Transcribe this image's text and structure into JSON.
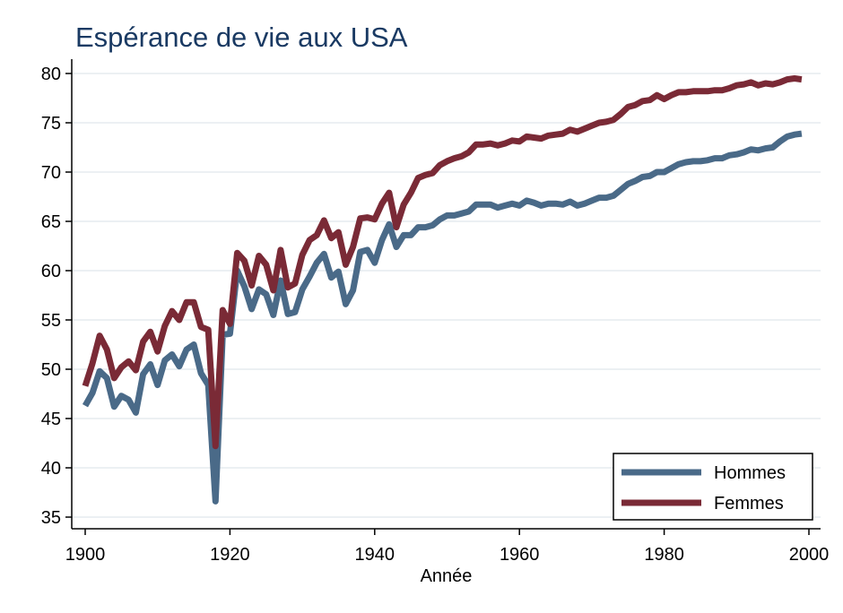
{
  "chart_data": {
    "type": "line",
    "title": "Espérance de vie aux USA",
    "xlabel": "Année",
    "ylabel": "",
    "xlim": [
      1900,
      2000
    ],
    "ylim": [
      35,
      80
    ],
    "xticks": [
      "1900",
      "1920",
      "1940",
      "1960",
      "1980",
      "2000"
    ],
    "yticks": [
      "35",
      "40",
      "45",
      "50",
      "55",
      "60",
      "65",
      "70",
      "75",
      "80"
    ],
    "grid": true,
    "legend_position": "bottom-right",
    "x": [
      1900,
      1901,
      1902,
      1903,
      1904,
      1905,
      1906,
      1907,
      1908,
      1909,
      1910,
      1911,
      1912,
      1913,
      1914,
      1915,
      1916,
      1917,
      1918,
      1919,
      1920,
      1921,
      1922,
      1923,
      1924,
      1925,
      1926,
      1927,
      1928,
      1929,
      1930,
      1931,
      1932,
      1933,
      1934,
      1935,
      1936,
      1937,
      1938,
      1939,
      1940,
      1941,
      1942,
      1943,
      1944,
      1945,
      1946,
      1947,
      1948,
      1949,
      1950,
      1951,
      1952,
      1953,
      1954,
      1955,
      1956,
      1957,
      1958,
      1959,
      1960,
      1961,
      1962,
      1963,
      1964,
      1965,
      1966,
      1967,
      1968,
      1969,
      1970,
      1971,
      1972,
      1973,
      1974,
      1975,
      1976,
      1977,
      1978,
      1979,
      1980,
      1981,
      1982,
      1983,
      1984,
      1985,
      1986,
      1987,
      1988,
      1989,
      1990,
      1991,
      1992,
      1993,
      1994,
      1995,
      1996,
      1997,
      1998,
      1999
    ],
    "series": [
      {
        "name": "Hommes",
        "color": "#4a6a88",
        "values": [
          46.3,
          47.6,
          49.8,
          49.1,
          46.2,
          47.3,
          46.9,
          45.6,
          49.5,
          50.5,
          48.4,
          50.9,
          51.5,
          50.3,
          52.0,
          52.5,
          49.6,
          48.4,
          36.6,
          53.5,
          53.6,
          60.0,
          58.4,
          56.1,
          58.1,
          57.6,
          55.5,
          59.0,
          55.6,
          55.8,
          58.1,
          59.4,
          60.8,
          61.7,
          59.3,
          59.9,
          56.6,
          58.0,
          61.9,
          62.1,
          60.8,
          63.1,
          64.7,
          62.4,
          63.6,
          63.6,
          64.4,
          64.4,
          64.6,
          65.2,
          65.6,
          65.6,
          65.8,
          66.0,
          66.7,
          66.7,
          66.7,
          66.4,
          66.6,
          66.8,
          66.6,
          67.1,
          66.9,
          66.6,
          66.8,
          66.8,
          66.7,
          67.0,
          66.6,
          66.8,
          67.1,
          67.4,
          67.4,
          67.6,
          68.2,
          68.8,
          69.1,
          69.5,
          69.6,
          70.0,
          70.0,
          70.4,
          70.8,
          71.0,
          71.1,
          71.1,
          71.2,
          71.4,
          71.4,
          71.7,
          71.8,
          72.0,
          72.3,
          72.2,
          72.4,
          72.5,
          73.1,
          73.6,
          73.8,
          73.9
        ]
      },
      {
        "name": "Femmes",
        "color": "#7a2a36",
        "values": [
          48.3,
          50.6,
          53.4,
          52.0,
          49.1,
          50.2,
          50.8,
          49.9,
          52.8,
          53.8,
          51.8,
          54.4,
          55.9,
          55.0,
          56.8,
          56.8,
          54.3,
          54.0,
          42.2,
          56.0,
          54.6,
          61.8,
          61.0,
          58.5,
          61.5,
          60.6,
          58.0,
          62.1,
          58.3,
          58.7,
          61.6,
          63.1,
          63.6,
          65.1,
          63.3,
          63.9,
          60.6,
          62.4,
          65.3,
          65.4,
          65.2,
          66.8,
          67.9,
          64.4,
          66.7,
          67.9,
          69.4,
          69.7,
          69.9,
          70.7,
          71.1,
          71.4,
          71.6,
          72.0,
          72.8,
          72.8,
          72.9,
          72.7,
          72.9,
          73.2,
          73.1,
          73.6,
          73.5,
          73.4,
          73.7,
          73.8,
          73.9,
          74.3,
          74.1,
          74.4,
          74.7,
          75.0,
          75.1,
          75.3,
          75.9,
          76.6,
          76.8,
          77.2,
          77.3,
          77.8,
          77.4,
          77.8,
          78.1,
          78.1,
          78.2,
          78.2,
          78.2,
          78.3,
          78.3,
          78.5,
          78.8,
          78.9,
          79.1,
          78.8,
          79.0,
          78.9,
          79.1,
          79.4,
          79.5,
          79.4
        ]
      }
    ]
  }
}
